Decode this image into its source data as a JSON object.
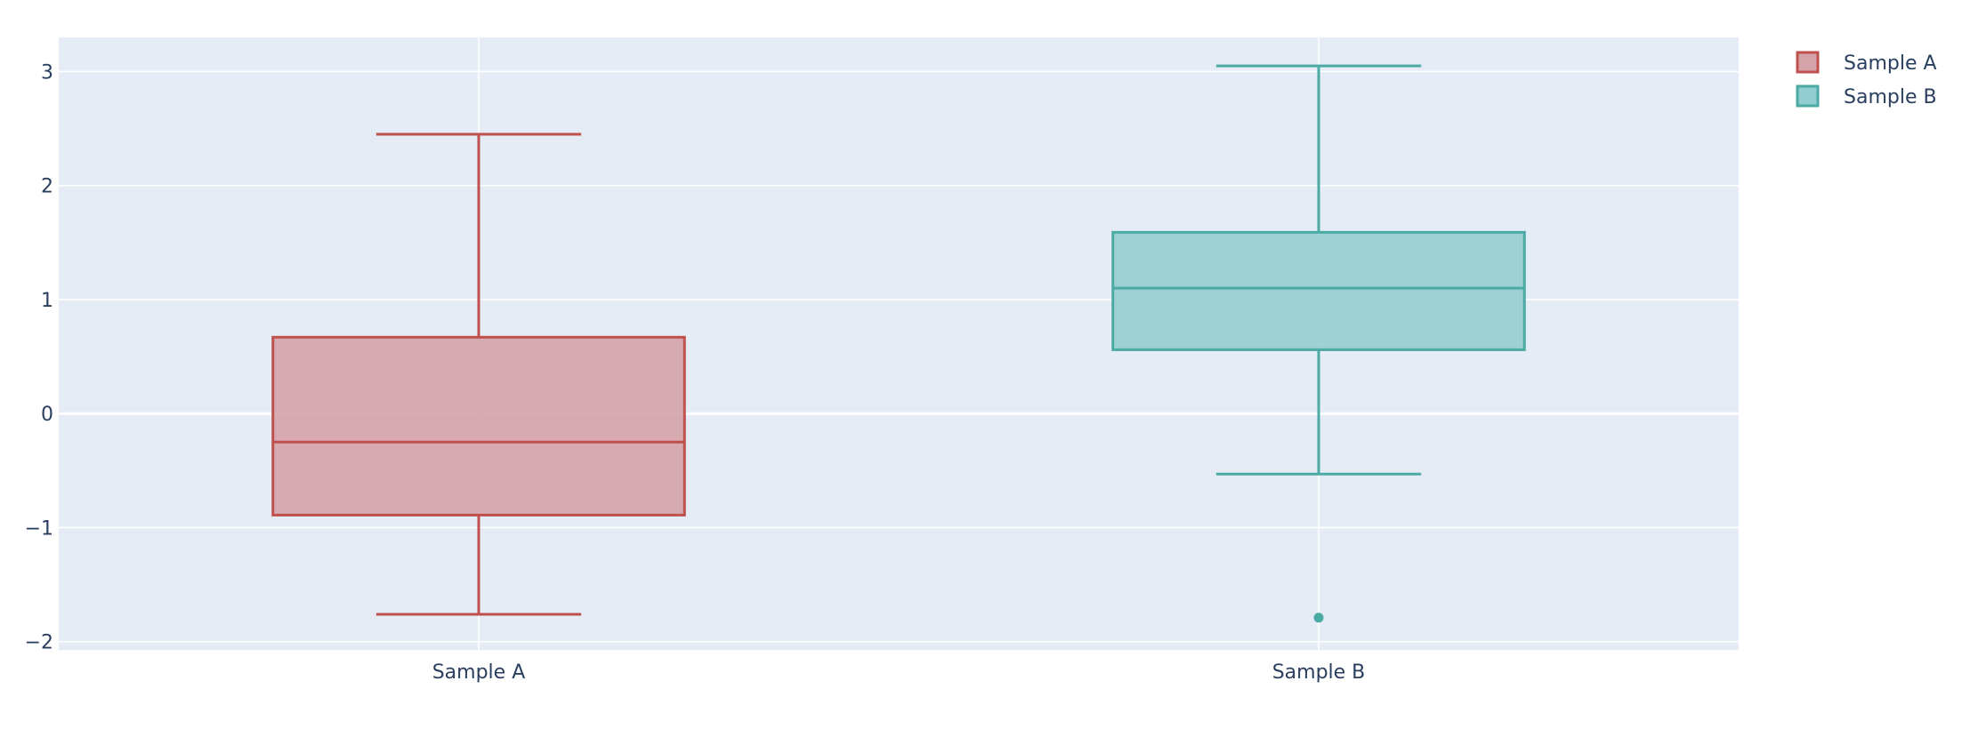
{
  "chart_data": {
    "type": "box",
    "title": "",
    "xlabel": "",
    "ylabel": "",
    "categories": [
      "Sample A",
      "Sample B"
    ],
    "ylim": [
      -2.08,
      3.3
    ],
    "yticks": [
      -2,
      -1,
      0,
      1,
      2,
      3
    ],
    "ytick_labels": [
      "−2",
      "−1",
      "0",
      "1",
      "2",
      "3"
    ],
    "grid": true,
    "legend_position": "top-right",
    "series": [
      {
        "name": "Sample A",
        "category": "Sample A",
        "lower_whisker": -1.76,
        "q1": -0.89,
        "median": -0.25,
        "q3": 0.67,
        "upper_whisker": 2.45,
        "outliers": [],
        "line_color": "#c0504d",
        "fill_color": "#d4a3a8"
      },
      {
        "name": "Sample B",
        "category": "Sample B",
        "lower_whisker": -0.53,
        "q1": 0.56,
        "median": 1.1,
        "q3": 1.59,
        "upper_whisker": 3.05,
        "outliers": [
          -1.79
        ],
        "line_color": "#4aaba5",
        "fill_color": "#93cdcf"
      }
    ],
    "colors": {
      "plot_background": "#e5ecf6",
      "grid": "#ffffff",
      "text": "#2a3f5f"
    }
  }
}
